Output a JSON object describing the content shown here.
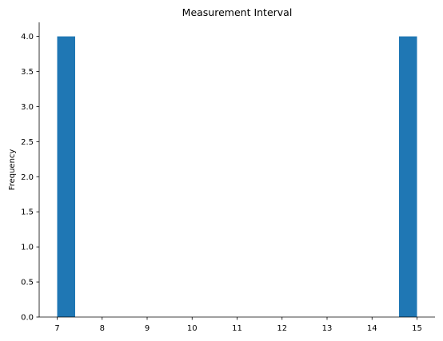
{
  "chart_data": {
    "type": "bar",
    "subtype": "histogram",
    "title": "Measurement Interval",
    "xlabel": "",
    "ylabel": "Frequency",
    "xlim": [
      6.6,
      15.4
    ],
    "ylim": [
      0,
      4.2
    ],
    "x_ticks": [
      "7",
      "8",
      "9",
      "10",
      "11",
      "12",
      "13",
      "14",
      "15"
    ],
    "y_ticks": [
      "0.0",
      "0.5",
      "1.0",
      "1.5",
      "2.0",
      "2.5",
      "3.0",
      "3.5",
      "4.0"
    ],
    "bins": [
      {
        "start": 7.0,
        "end": 7.4,
        "count": 4
      },
      {
        "start": 14.6,
        "end": 15.0,
        "count": 4
      }
    ],
    "color": "#1f77b4",
    "grid": false,
    "spines": [
      "left",
      "bottom"
    ]
  }
}
